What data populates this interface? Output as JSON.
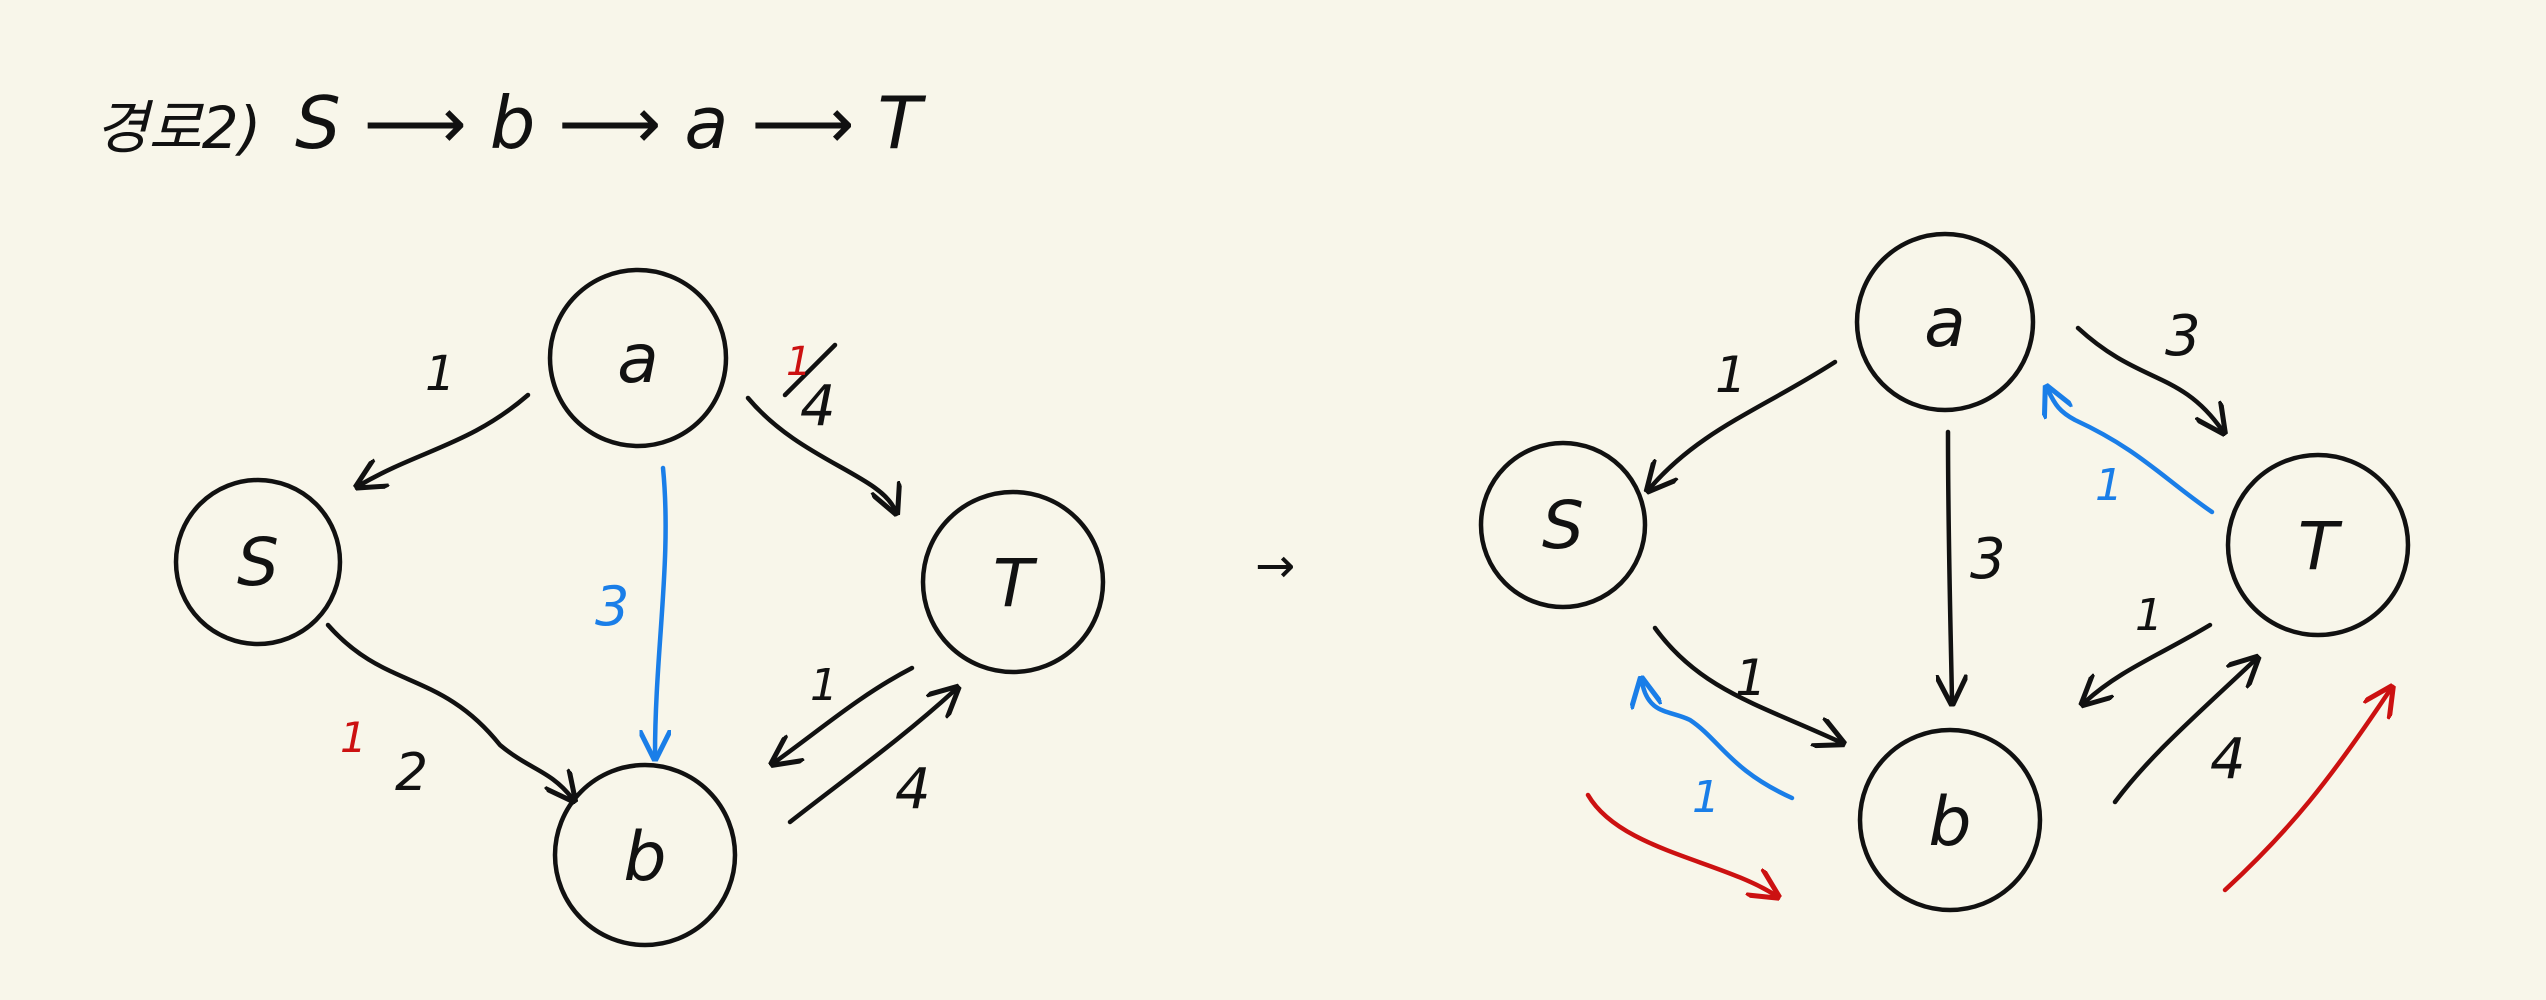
{
  "header": {
    "step_label": "경로2)",
    "path": "S ⟶ b ⟶ a ⟶ T"
  },
  "transition_arrow": "→",
  "left_graph": {
    "nodes": {
      "a": "a",
      "s": "S",
      "t": "T",
      "b": "b"
    },
    "edges": {
      "a_s": "1",
      "a_t": "4",
      "a_t_struck": "4",
      "a_t_new": "1",
      "a_b": "3",
      "s_b": "2",
      "s_b_new": "1",
      "t_b_flow": "1",
      "b_t": "4"
    }
  },
  "right_graph": {
    "nodes": {
      "a": "a",
      "s": "S",
      "t": "T",
      "b": "b"
    },
    "edges": {
      "a_s": "1",
      "a_t": "3",
      "t_a_residual": "1",
      "a_b": "3",
      "s_b": "1",
      "b_s_residual": "1",
      "t_b": "1",
      "b_t": "4"
    }
  },
  "colors": {
    "background": "#f8f6ea",
    "ink": "#111111",
    "flow_blue": "#1a7ee8",
    "path_red": "#cc1111"
  }
}
